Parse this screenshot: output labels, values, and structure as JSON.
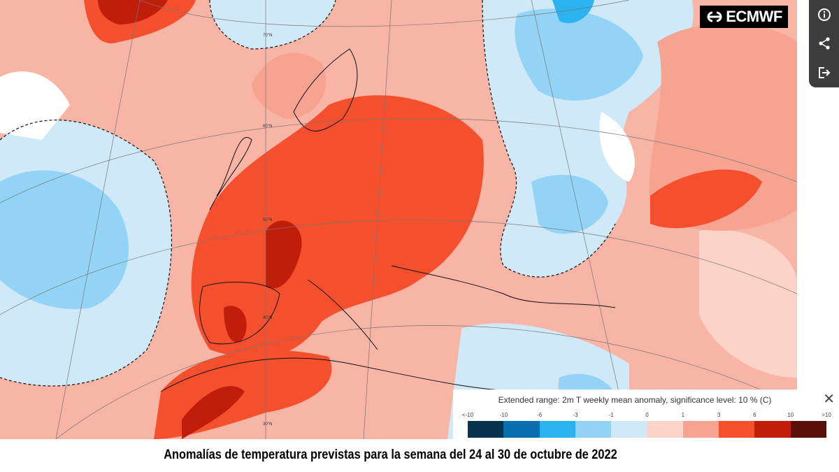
{
  "logo": {
    "text": "ECMWF"
  },
  "toolbar": {
    "icons": [
      "info-icon",
      "share-icon",
      "export-icon"
    ]
  },
  "legend": {
    "title": "Extended range: 2m T weekly mean anomaly, significance level: 10 % (C)",
    "close_icon": "close-icon",
    "labels": [
      "<-10",
      "-10",
      "-6",
      "-3",
      "-1",
      "0",
      "1",
      "3",
      "6",
      "10",
      ">10"
    ],
    "colors": [
      "#08324e",
      "#0a6fae",
      "#2bb3ef",
      "#92d3f6",
      "#cfe9f8",
      "#fcd3c7",
      "#f7a391",
      "#f5502d",
      "#c01e0b",
      "#5a0f07"
    ]
  },
  "map": {
    "latitude_labels": [
      "70°N",
      "60°N",
      "50°N",
      "40°N",
      "30°N"
    ]
  },
  "caption": "Anomalías de temperatura previstas para la semana del 24 al 30 de octubre de 2022"
}
